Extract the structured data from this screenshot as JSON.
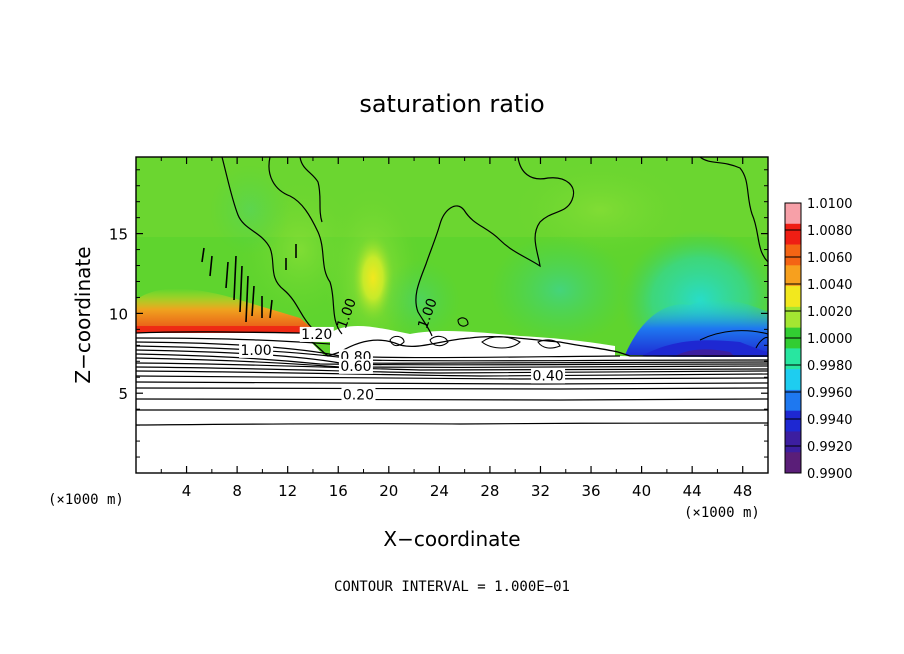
{
  "chart_data": {
    "type": "heatmap",
    "title": "saturation ratio",
    "xlabel": "X−coordinate",
    "ylabel": "Z−coordinate",
    "x_unit_left": "(×1000 m)",
    "x_unit_right": "(×1000 m)",
    "xlim": [
      0,
      50
    ],
    "ylim": [
      0,
      19.8
    ],
    "x_ticks": [
      4,
      8,
      12,
      16,
      20,
      24,
      28,
      32,
      36,
      40,
      44,
      48
    ],
    "y_ticks": [
      5,
      10,
      15
    ],
    "footer": "CONTOUR INTERVAL = 1.000E−01",
    "colorbar": {
      "min": 0.99,
      "max": 1.01,
      "labels": [
        "1.0100",
        "1.0080",
        "1.0060",
        "1.0040",
        "1.0020",
        "1.0000",
        "0.9980",
        "0.9960",
        "0.9940",
        "0.9920",
        "0.9900"
      ],
      "colors": [
        "#f7a0a8",
        "#ef1e14",
        "#f46414",
        "#f7a01e",
        "#f2e81e",
        "#a4e632",
        "#32cd32",
        "#28e6a0",
        "#1ecdf0",
        "#1e78f0",
        "#1e28d2",
        "#3c1ea0",
        "#5a1e78"
      ]
    },
    "contour_labels": [
      {
        "text": "1.20",
        "x": 14.3,
        "y": 8.4
      },
      {
        "text": "1.00",
        "x": 9.5,
        "y": 7.4
      },
      {
        "text": "0.80",
        "x": 17.4,
        "y": 7.0
      },
      {
        "text": "0.60",
        "x": 17.4,
        "y": 6.4
      },
      {
        "text": "0.40",
        "x": 32.6,
        "y": 5.8
      },
      {
        "text": "0.20",
        "x": 17.6,
        "y": 4.6
      },
      {
        "text": "1.00",
        "x": 23.4,
        "y": 9.9
      },
      {
        "text": "1.00",
        "x": 17.0,
        "y": 9.9
      }
    ],
    "contours": [
      {
        "level": 0.2,
        "z": 4.6
      },
      {
        "level": 0.4,
        "z": 5.8
      },
      {
        "level": 0.6,
        "z": 6.4
      },
      {
        "level": 0.8,
        "z": 7.0
      },
      {
        "level": 1.0,
        "z": 7.4
      }
    ]
  }
}
